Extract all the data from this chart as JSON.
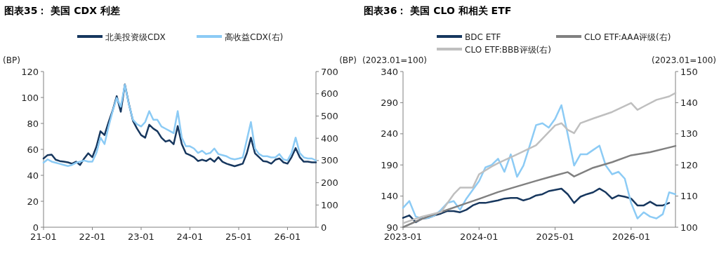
{
  "chart_data": [
    {
      "type": "line",
      "title": "图表35：  美国 CDX 利差",
      "ylabel": "(BP)",
      "y2label": "(BP)",
      "legend": "top",
      "xlim": [
        "2021-01",
        "2026-08"
      ],
      "xticks": [
        {
          "value": "2021-01",
          "label": "21-01"
        },
        {
          "value": "2022-01",
          "label": "22-01"
        },
        {
          "value": "2023-01",
          "label": "23-01"
        },
        {
          "value": "2024-01",
          "label": "24-01"
        },
        {
          "value": "2025-01",
          "label": "25-01"
        },
        {
          "value": "2026-01",
          "label": "26-01"
        }
      ],
      "ylim": [
        0,
        120
      ],
      "yticks": [
        0,
        20,
        40,
        60,
        80,
        100,
        120
      ],
      "y2lim": [
        0,
        700
      ],
      "y2ticks": [
        0,
        100,
        200,
        300,
        400,
        500,
        600,
        700
      ],
      "x": [
        "2021-01",
        "2021-02",
        "2021-03",
        "2021-04",
        "2021-05",
        "2021-06",
        "2021-07",
        "2021-08",
        "2021-09",
        "2021-10",
        "2021-11",
        "2021-12",
        "2022-01",
        "2022-02",
        "2022-03",
        "2022-04",
        "2022-05",
        "2022-06",
        "2022-07",
        "2022-08",
        "2022-09",
        "2022-10",
        "2022-11",
        "2022-12",
        "2023-01",
        "2023-02",
        "2023-03",
        "2023-04",
        "2023-05",
        "2023-06",
        "2023-07",
        "2023-08",
        "2023-09",
        "2023-10",
        "2023-11",
        "2023-12",
        "2024-01",
        "2024-02",
        "2024-03",
        "2024-04",
        "2024-05",
        "2024-06",
        "2024-07",
        "2024-08",
        "2024-09",
        "2024-10",
        "2024-11",
        "2024-12",
        "2025-01",
        "2025-02",
        "2025-03",
        "2025-04",
        "2025-05",
        "2025-06",
        "2025-07",
        "2025-08",
        "2025-09",
        "2025-10",
        "2025-11",
        "2025-12",
        "2026-01",
        "2026-02",
        "2026-03",
        "2026-04",
        "2026-05",
        "2026-06",
        "2026-07",
        "2026-08"
      ],
      "series": [
        {
          "name": "北美投资级CDX",
          "color": "#17375e",
          "values": [
            53,
            55.6,
            56,
            52,
            51,
            50.5,
            50,
            49,
            50.5,
            48,
            53,
            57,
            54,
            62,
            74,
            71,
            81,
            90,
            101,
            89,
            110,
            95,
            82,
            76,
            71,
            69,
            79,
            76,
            74,
            69,
            66,
            67,
            64,
            78,
            64,
            57,
            55.6,
            54,
            51,
            52,
            51,
            53,
            50.5,
            54,
            50.5,
            49,
            48,
            47,
            48,
            49,
            57,
            69,
            57,
            54,
            51,
            50.5,
            49,
            52,
            53,
            50,
            49,
            54,
            61,
            54,
            50.5,
            50.5,
            50,
            50
          ]
        },
        {
          "name": "高收益CDX(右)",
          "color": "#8ccbf5",
          "axis": "y2",
          "values": [
            290,
            305,
            295,
            290,
            285,
            280,
            275,
            280,
            290,
            295,
            300,
            295,
            295,
            334,
            403,
            374,
            453,
            522,
            581,
            542,
            640,
            552,
            483,
            463,
            453,
            473,
            522,
            483,
            483,
            453,
            443,
            433,
            423,
            522,
            403,
            364,
            364,
            354,
            334,
            344,
            329,
            334,
            354,
            329,
            324,
            319,
            309,
            305,
            309,
            314,
            393,
            473,
            354,
            329,
            319,
            319,
            314,
            314,
            329,
            305,
            300,
            334,
            403,
            334,
            314,
            309,
            309,
            300
          ]
        }
      ]
    },
    {
      "type": "line",
      "title": "图表36：  美国 CLO 和相关 ETF",
      "ylabel": "(2023.01=100)",
      "y2label": "(2023.01=100)",
      "legend": "top",
      "xlim": [
        "2023-01",
        "2026-08"
      ],
      "xticks": [
        {
          "value": "2023-01",
          "label": "2023-01"
        },
        {
          "value": "2024-01",
          "label": "2024-01"
        },
        {
          "value": "2025-01",
          "label": "2025-01"
        },
        {
          "value": "2026-01",
          "label": "2026-01"
        }
      ],
      "ylim": [
        90,
        340
      ],
      "yticks": [
        90,
        140,
        190,
        240,
        290,
        340
      ],
      "y2lim": [
        100,
        150
      ],
      "y2ticks": [
        100,
        110,
        120,
        130,
        140,
        150
      ],
      "series": [
        {
          "name": "BDC ETF",
          "color": "#17375e",
          "x": [
            "2023-01",
            "2023-02",
            "2023-03",
            "2023-04",
            "2023-05",
            "2023-06",
            "2023-07",
            "2023-08",
            "2023-09",
            "2023-10",
            "2023-11",
            "2023-12",
            "2024-01",
            "2024-02",
            "2024-03",
            "2024-04",
            "2024-05",
            "2024-06",
            "2024-07",
            "2024-08",
            "2024-09",
            "2024-10",
            "2024-11",
            "2024-12",
            "2025-01",
            "2025-02",
            "2025-03",
            "2025-04",
            "2025-05",
            "2025-06",
            "2025-07",
            "2025-08",
            "2025-09",
            "2025-10",
            "2025-11",
            "2025-12",
            "2026-01",
            "2026-02",
            "2026-03",
            "2026-04",
            "2026-05",
            "2026-06",
            "2026-07"
          ],
          "values": [
            105,
            109,
            98,
            104,
            105,
            109,
            112,
            116,
            116,
            114,
            118,
            125,
            129,
            129,
            131,
            133,
            136,
            137,
            137,
            133,
            136,
            141,
            143,
            148,
            150,
            152,
            143,
            129,
            139,
            143,
            146,
            152,
            146,
            136,
            141,
            139,
            136,
            125,
            125,
            131,
            125,
            125,
            129
          ]
        },
        {
          "color": "#8ccbf5",
          "x": [
            "2023-01",
            "2023-02",
            "2023-03",
            "2023-04",
            "2023-05",
            "2023-06",
            "2023-07",
            "2023-08",
            "2023-09",
            "2023-10",
            "2023-11",
            "2023-12",
            "2024-01",
            "2024-02",
            "2024-03",
            "2024-04",
            "2024-05",
            "2024-06",
            "2024-07",
            "2024-08",
            "2024-09",
            "2024-10",
            "2024-11",
            "2024-12",
            "2025-01",
            "2025-02",
            "2025-03",
            "2025-04",
            "2025-05",
            "2025-06",
            "2025-07",
            "2025-08",
            "2025-09",
            "2025-10",
            "2025-11",
            "2025-12",
            "2026-01",
            "2026-02",
            "2026-03",
            "2026-04",
            "2026-05",
            "2026-06",
            "2026-07",
            "2026-08"
          ],
          "values": [
            121,
            132,
            107,
            104,
            105,
            109,
            118,
            129,
            132,
            118,
            136,
            150,
            164,
            186,
            190,
            200,
            179,
            207,
            171,
            189,
            221,
            254,
            257,
            250,
            264,
            286,
            239,
            189,
            207,
            207,
            214,
            221,
            189,
            175,
            179,
            168,
            129,
            104,
            114,
            107,
            104,
            111,
            146,
            143
          ]
        },
        {
          "name": "CLO ETF:AAA评级(右)",
          "color": "#808080",
          "axis": "y2",
          "x": [
            "2023-01",
            "2023-04",
            "2023-07",
            "2023-10",
            "2024-01",
            "2024-04",
            "2024-07",
            "2024-10",
            "2025-01",
            "2025-03",
            "2025-04",
            "2025-07",
            "2025-10",
            "2026-01",
            "2026-04",
            "2026-07",
            "2026-08"
          ],
          "values": [
            100,
            102.7,
            104.9,
            107,
            109.1,
            111.3,
            113.1,
            114.9,
            116.6,
            117.7,
            116.3,
            119.1,
            120.9,
            123.1,
            124.1,
            125.6,
            126.1
          ]
        },
        {
          "name": "CLO ETF:BBB评级(右)",
          "color": "#bfbfbf",
          "axis": "y2",
          "x": [
            "2023-01",
            "2023-04",
            "2023-07",
            "2023-09",
            "2023-10",
            "2023-12",
            "2024-01",
            "2024-03",
            "2024-04",
            "2024-07",
            "2024-10",
            "2025-01",
            "2025-02",
            "2025-03",
            "2025-04",
            "2025-05",
            "2025-07",
            "2025-10",
            "2026-01",
            "2026-02",
            "2026-03",
            "2026-05",
            "2026-07",
            "2026-08"
          ],
          "values": [
            101.3,
            103.4,
            104.9,
            110.6,
            112.7,
            112.7,
            117,
            119.5,
            120.6,
            123.4,
            126.3,
            132.7,
            133.4,
            131.3,
            130.2,
            133.4,
            134.9,
            137,
            139.9,
            137.7,
            138.8,
            140.9,
            142,
            143.1
          ]
        }
      ]
    }
  ]
}
